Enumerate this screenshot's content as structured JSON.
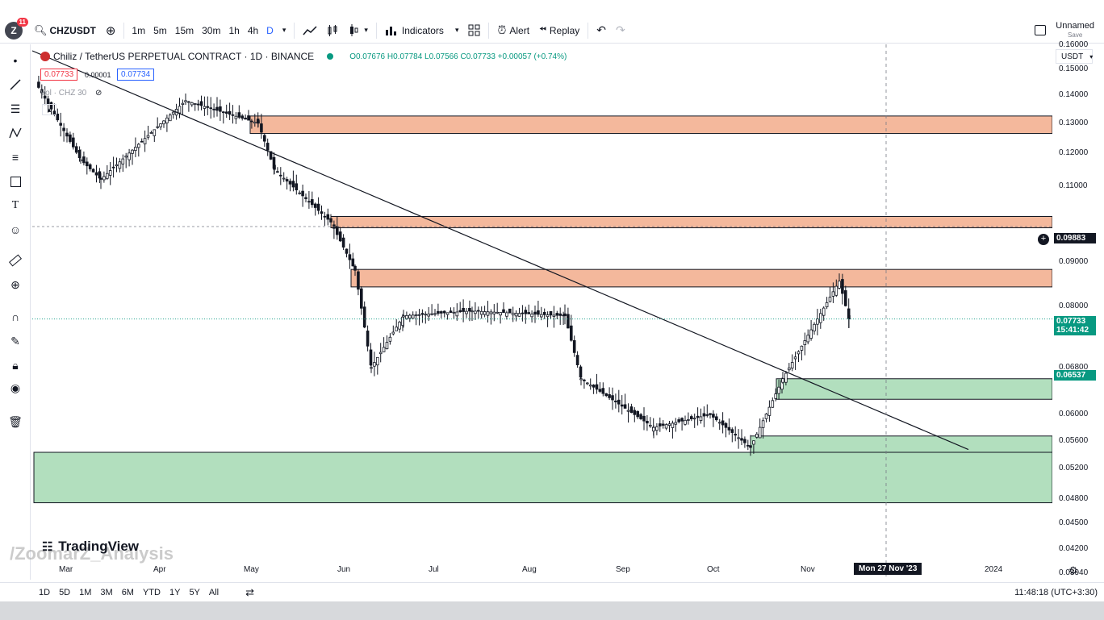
{
  "app": {
    "notification_count": "11",
    "symbol": "CHZUSDT",
    "timeframes": [
      "1m",
      "5m",
      "15m",
      "30m",
      "1h",
      "4h",
      "D"
    ],
    "active_timeframe": "D",
    "indicators_label": "Indicators",
    "alert_label": "Alert",
    "replay_label": "Replay",
    "layout_name": "Unnamed",
    "save_label": "Save"
  },
  "legend": {
    "title": "Chiliz / TetherUS PERPETUAL CONTRACT · 1D · BINANCE",
    "ohlc": "O0.07676 H0.07784 L0.07566 C0.07733 +0.00057 (+0.74%)",
    "bid": "0.07733",
    "spread": "0.00001",
    "ask": "0.07734",
    "volume_label": "Vol · CHZ 30"
  },
  "price_scale": {
    "currency": "USDT",
    "ticks": [
      "0.16000",
      "0.15000",
      "0.14000",
      "0.13000",
      "0.12000",
      "0.11000",
      "0.09000",
      "0.08000",
      "0.06800",
      "0.06000",
      "0.05600",
      "0.05200",
      "0.04800",
      "0.04500",
      "0.04200",
      "0.03940"
    ],
    "cursor_price": "0.09883",
    "last_price": "0.07733",
    "countdown": "15:41:42",
    "level_price": "0.06537"
  },
  "time_scale": {
    "labels": [
      "Mar",
      "Apr",
      "May",
      "Jun",
      "Jul",
      "Aug",
      "Sep",
      "Oct",
      "Nov",
      "2024"
    ],
    "cursor_date": "Mon 27 Nov '23"
  },
  "bottom_bar": {
    "ranges": [
      "1D",
      "5D",
      "1M",
      "3M",
      "6M",
      "YTD",
      "1Y",
      "5Y",
      "All"
    ],
    "clock": "11:48:18 (UTC+3:30)"
  },
  "watermark": {
    "brand": "TradingView",
    "author": "/ZoomarZ_Analysis"
  },
  "colors": {
    "supply_zone": "#f4b89c",
    "demand_zone": "#b2dfbe",
    "up": "#089981",
    "down": "#f23645",
    "candle": "#131722"
  },
  "chart_data": {
    "type": "candlestick",
    "title": "Chiliz / TetherUS PERPETUAL CONTRACT · 1D · BINANCE",
    "ylim": [
      0.0394,
      0.163
    ],
    "y_scale": "log",
    "supply_zones": [
      [
        0.1265,
        0.1325
      ],
      [
        0.0985,
        0.1015
      ],
      [
        0.0842,
        0.0882
      ]
    ],
    "demand_zones": [
      [
        0.0625,
        0.066
      ],
      [
        0.0543,
        0.0567
      ],
      [
        0.0475,
        0.0543
      ]
    ],
    "close_path": [
      {
        "month": "Mar",
        "price": 0.145
      },
      {
        "month": "Mar",
        "price": 0.118
      },
      {
        "month": "Apr",
        "price": 0.112
      },
      {
        "month": "Apr",
        "price": 0.138
      },
      {
        "month": "May",
        "price": 0.13
      },
      {
        "month": "May",
        "price": 0.115
      },
      {
        "month": "Jun",
        "price": 0.1
      },
      {
        "month": "Jun",
        "price": 0.088
      },
      {
        "month": "Jun",
        "price": 0.068
      },
      {
        "month": "Jul",
        "price": 0.078
      },
      {
        "month": "Jul",
        "price": 0.079
      },
      {
        "month": "Aug",
        "price": 0.078
      },
      {
        "month": "Aug",
        "price": 0.066
      },
      {
        "month": "Sep",
        "price": 0.058
      },
      {
        "month": "Oct",
        "price": 0.06
      },
      {
        "month": "Oct",
        "price": 0.055
      },
      {
        "month": "Nov",
        "price": 0.066
      },
      {
        "month": "Nov",
        "price": 0.0855
      },
      {
        "month": "Nov",
        "price": 0.07733
      }
    ]
  }
}
